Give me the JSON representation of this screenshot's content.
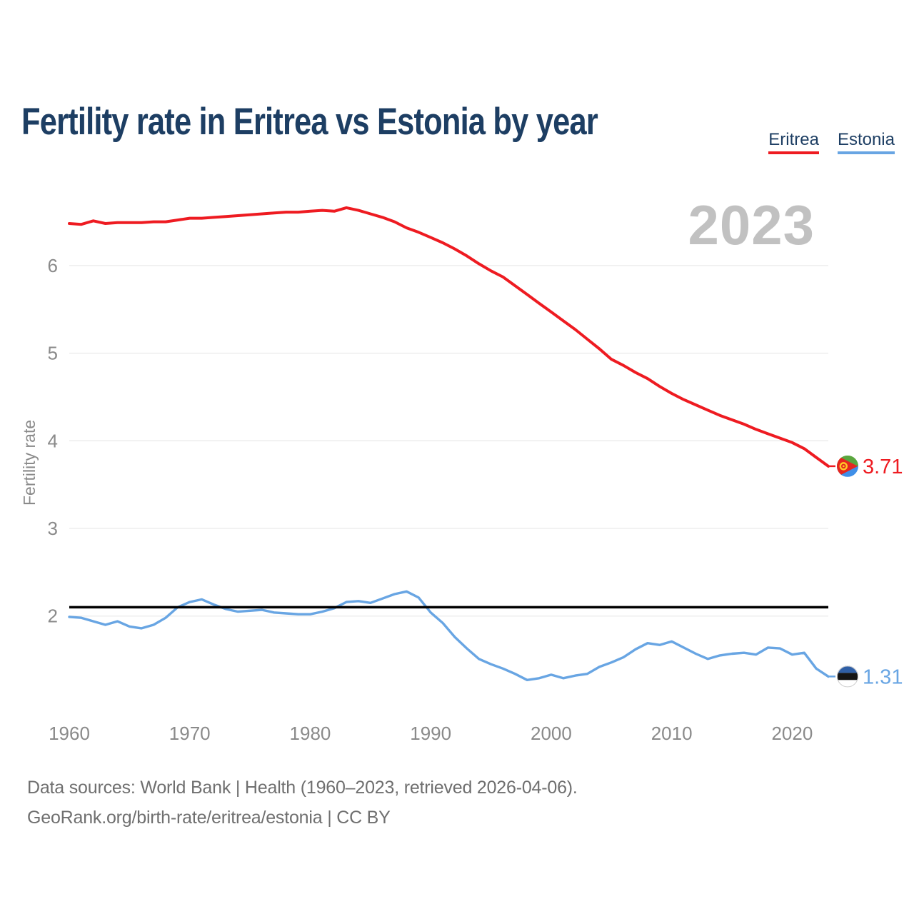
{
  "header": {
    "title": "Fertility rate in Eritrea vs Estonia by year"
  },
  "legend": {
    "items": [
      {
        "label": "Eritrea",
        "color": "#ee1b21"
      },
      {
        "label": "Estonia",
        "color": "#68a5e3"
      }
    ]
  },
  "watermark": "2023",
  "footer": {
    "line1": "Data sources: World Bank | Health (1960–2023, retrieved 2026-04-06).",
    "line2": "GeoRank.org/birth-rate/eritrea/estonia | CC BY"
  },
  "icons": {
    "eritrea_flag": {
      "green": "#5aa63e",
      "blue": "#3f8fe8",
      "red": "#e52620",
      "gold": "#ffc726"
    },
    "estonia_flag": {
      "blue": "#2f5fa6",
      "black": "#151515",
      "white": "#ffffff",
      "ring": "#cfcfcf"
    }
  },
  "chart_data": {
    "type": "line",
    "title": "Fertility rate in Eritrea vs Estonia by year",
    "xlabel": "",
    "ylabel": "Fertility rate",
    "grid": true,
    "legend_position": "top-right",
    "ylim": [
      1.1,
      6.9
    ],
    "y_ticks": [
      2,
      3,
      4,
      5,
      6
    ],
    "x_ticks": [
      1960,
      1970,
      1980,
      1990,
      2000,
      2010,
      2020
    ],
    "reference_line": {
      "value": 2.1,
      "color": "#000000"
    },
    "years": [
      1960,
      1961,
      1962,
      1963,
      1964,
      1965,
      1966,
      1967,
      1968,
      1969,
      1970,
      1971,
      1972,
      1973,
      1974,
      1975,
      1976,
      1977,
      1978,
      1979,
      1980,
      1981,
      1982,
      1983,
      1984,
      1985,
      1986,
      1987,
      1988,
      1989,
      1990,
      1991,
      1992,
      1993,
      1994,
      1995,
      1996,
      1997,
      1998,
      1999,
      2000,
      2001,
      2002,
      2003,
      2004,
      2005,
      2006,
      2007,
      2008,
      2009,
      2010,
      2011,
      2012,
      2013,
      2014,
      2015,
      2016,
      2017,
      2018,
      2019,
      2020,
      2021,
      2022,
      2023
    ],
    "series": [
      {
        "name": "Eritrea",
        "color": "#ee1b21",
        "flag": "eritrea",
        "end_label": "3.71",
        "values": [
          6.48,
          6.47,
          6.51,
          6.48,
          6.49,
          6.49,
          6.49,
          6.5,
          6.5,
          6.52,
          6.54,
          6.54,
          6.55,
          6.56,
          6.57,
          6.58,
          6.59,
          6.6,
          6.61,
          6.61,
          6.62,
          6.63,
          6.62,
          6.66,
          6.63,
          6.59,
          6.55,
          6.5,
          6.43,
          6.38,
          6.32,
          6.26,
          6.19,
          6.11,
          6.02,
          5.94,
          5.87,
          5.77,
          5.67,
          5.57,
          5.47,
          5.37,
          5.27,
          5.16,
          5.05,
          4.93,
          4.86,
          4.78,
          4.71,
          4.62,
          4.54,
          4.47,
          4.41,
          4.35,
          4.29,
          4.24,
          4.19,
          4.13,
          4.08,
          4.03,
          3.98,
          3.91,
          3.81,
          3.71
        ]
      },
      {
        "name": "Estonia",
        "color": "#68a5e3",
        "flag": "estonia",
        "end_label": "1.31",
        "values": [
          1.99,
          1.98,
          1.94,
          1.9,
          1.94,
          1.88,
          1.86,
          1.9,
          1.98,
          2.1,
          2.16,
          2.19,
          2.13,
          2.08,
          2.05,
          2.06,
          2.07,
          2.04,
          2.03,
          2.02,
          2.02,
          2.05,
          2.09,
          2.16,
          2.17,
          2.15,
          2.2,
          2.25,
          2.28,
          2.21,
          2.04,
          1.92,
          1.76,
          1.63,
          1.51,
          1.45,
          1.4,
          1.34,
          1.27,
          1.29,
          1.33,
          1.29,
          1.32,
          1.34,
          1.42,
          1.47,
          1.53,
          1.62,
          1.69,
          1.67,
          1.71,
          1.64,
          1.57,
          1.51,
          1.55,
          1.57,
          1.58,
          1.56,
          1.64,
          1.63,
          1.56,
          1.58,
          1.4,
          1.31
        ]
      }
    ]
  }
}
